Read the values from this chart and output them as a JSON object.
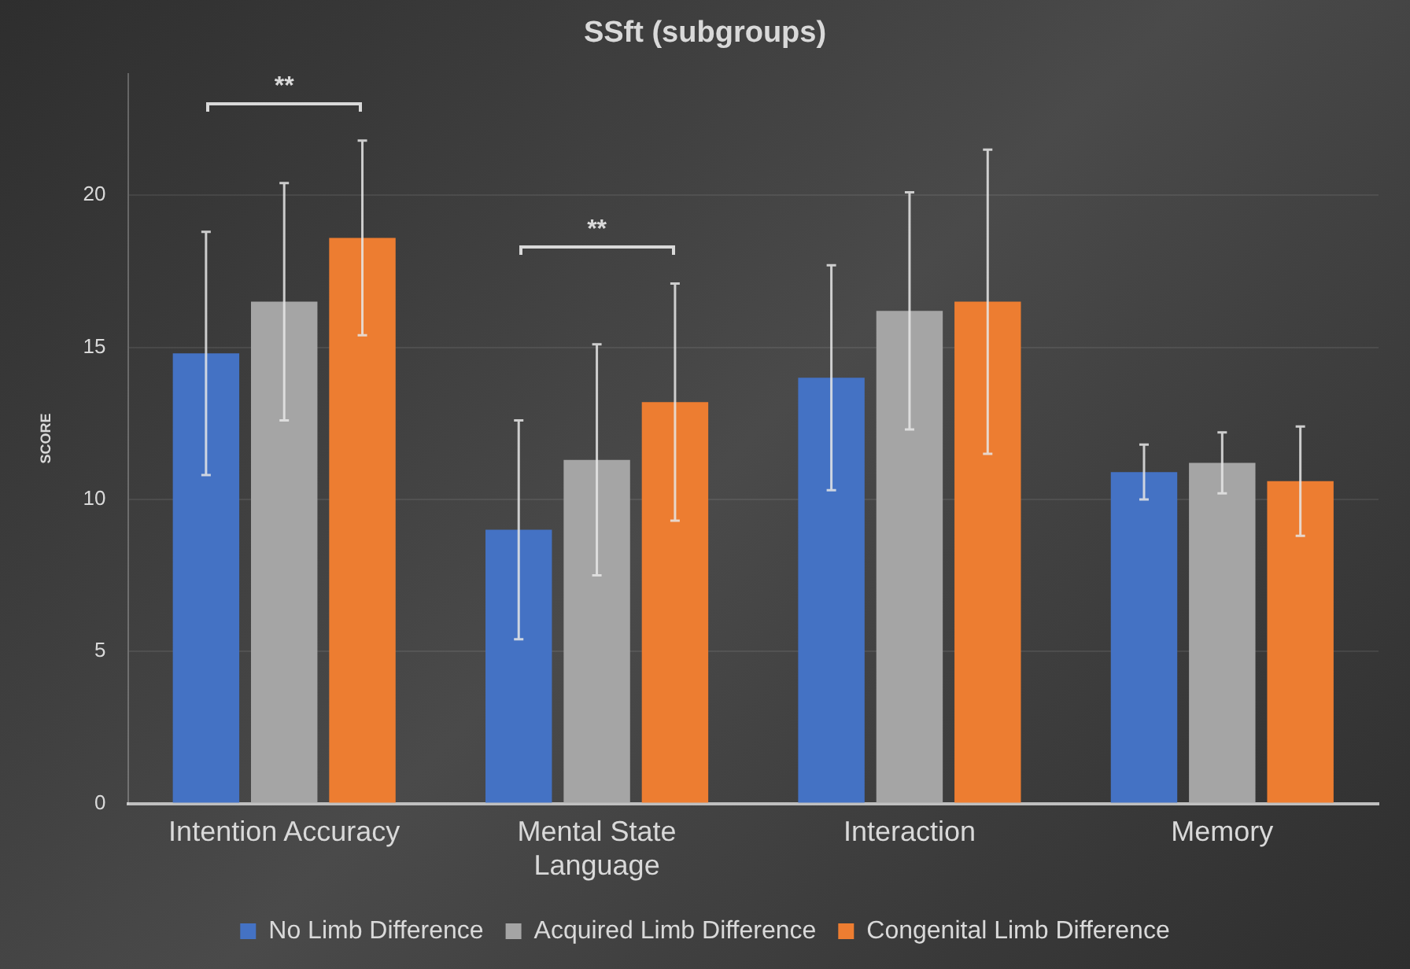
{
  "chart_data": {
    "type": "bar",
    "title": "SSft (subgroups)",
    "ylabel": "SCORE",
    "categories": [
      "Intention Accuracy",
      "Mental State Language",
      "Interaction",
      "Memory"
    ],
    "series": [
      {
        "name": "No Limb Difference",
        "color": "#4472c4",
        "values": [
          14.8,
          9.0,
          14.0,
          10.9
        ],
        "errors": [
          4.0,
          3.6,
          3.7,
          0.9
        ]
      },
      {
        "name": "Acquired Limb Difference",
        "color": "#a5a5a5",
        "values": [
          16.5,
          11.3,
          16.2,
          11.2
        ],
        "errors": [
          3.9,
          3.8,
          3.9,
          1.0
        ]
      },
      {
        "name": "Congenital Limb Difference",
        "color": "#ed7d31",
        "values": [
          18.6,
          13.2,
          16.5,
          10.6
        ],
        "errors": [
          3.2,
          3.9,
          5.0,
          1.8
        ]
      }
    ],
    "ylim": [
      0,
      24
    ],
    "yticks": [
      0,
      5,
      10,
      15,
      20
    ],
    "grid": "y",
    "legend": "bottom",
    "annotations": [
      "**",
      "**"
    ]
  }
}
